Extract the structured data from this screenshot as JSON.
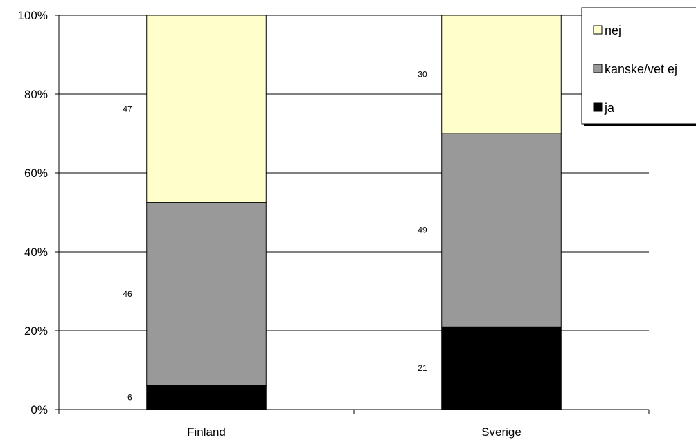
{
  "chart_data": {
    "type": "bar",
    "stacked": true,
    "percent_stacked": true,
    "categories": [
      "Finland",
      "Sverige"
    ],
    "series": [
      {
        "name": "ja",
        "values": [
          6,
          21
        ],
        "color": "#000000"
      },
      {
        "name": "kanske/vet ej",
        "values": [
          46,
          49
        ],
        "color": "#999999"
      },
      {
        "name": "nej",
        "values": [
          47,
          30
        ],
        "color": "#ffffcc"
      }
    ],
    "ylim": [
      0,
      100
    ],
    "yticks": [
      "0%",
      "20%",
      "40%",
      "60%",
      "80%",
      "100%"
    ],
    "grid": true,
    "legend_position": "top-right",
    "legend_order": [
      "nej",
      "kanske/vet ej",
      "ja"
    ]
  }
}
